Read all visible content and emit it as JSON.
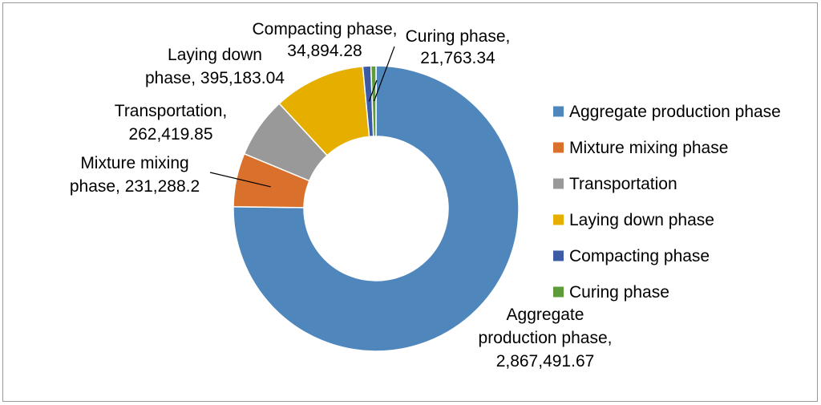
{
  "chart_data": {
    "type": "pie",
    "variant": "doughnut",
    "title": "",
    "unit_note": "",
    "legend_position": "right",
    "categories": [
      "Aggregate production phase",
      "Mixture mixing phase",
      "Transportation",
      "Laying down phase",
      "Compacting phase",
      "Curing phase"
    ],
    "values": [
      2867491.67,
      231288.2,
      262419.85,
      395183.04,
      34894.28,
      21763.34
    ],
    "colors": [
      "#4F87BD",
      "#D9702B",
      "#999999",
      "#E6AF00",
      "#3B5BA6",
      "#5E9C3A"
    ],
    "data_labels": [
      [
        "Aggregate",
        "production phase,",
        "2,867,491.67"
      ],
      [
        "Mixture mixing",
        "phase, 231,288.2"
      ],
      [
        "Transportation,",
        "262,419.85"
      ],
      [
        "Laying down",
        "phase, 395,183.04"
      ],
      [
        "Compacting phase,",
        "34,894.28"
      ],
      [
        "Curing phase,",
        "21,763.34"
      ]
    ]
  }
}
